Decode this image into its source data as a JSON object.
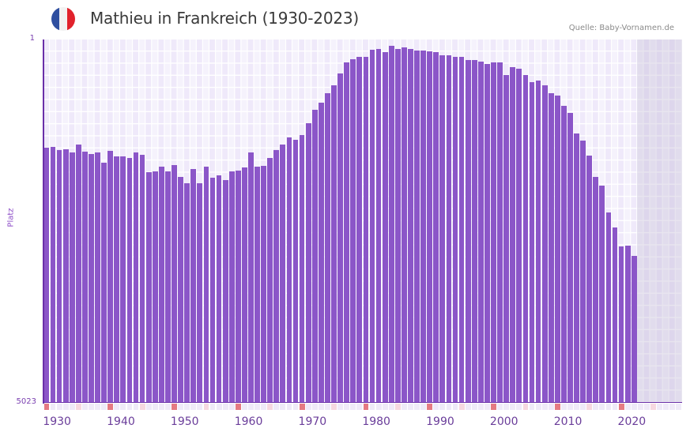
{
  "header": {
    "title": "Mathieu in Frankreich (1930-2023)",
    "source": "Quelle: Baby-Vornamen.de",
    "flag": {
      "icon": "france-flag-icon",
      "colors": [
        "#2f4fa0",
        "#f2f2f2",
        "#e1222c"
      ]
    }
  },
  "colors": {
    "bar": "#8b56c8",
    "axis": "#6a2fa8",
    "plot_bg_a": "#efe9fa",
    "plot_bg_b": "#f5f2fc",
    "future_bg": "#e3dfec",
    "decade_marker": "#e57a82",
    "half_decade_marker": "#f6d8e0",
    "other_marker": "#efeaf8"
  },
  "chart_data": {
    "type": "bar",
    "title": "Mathieu in Frankreich (1930-2023)",
    "xlabel": "",
    "ylabel": "Platz",
    "y_scale": "log",
    "y_inverted": true,
    "ylim": [
      1,
      5023
    ],
    "y_tick_labels": [
      "1",
      "5023"
    ],
    "x_tick_labels": [
      "1930",
      "1940",
      "1950",
      "1960",
      "1970",
      "1980",
      "1990",
      "2000",
      "2010",
      "2020"
    ],
    "x_range": [
      1930,
      2029
    ],
    "shaded_future_from": 2023,
    "grid": true,
    "legend": null,
    "categories": [
      1930,
      1931,
      1932,
      1933,
      1934,
      1935,
      1936,
      1937,
      1938,
      1939,
      1940,
      1941,
      1942,
      1943,
      1944,
      1945,
      1946,
      1947,
      1948,
      1949,
      1950,
      1951,
      1952,
      1953,
      1954,
      1955,
      1956,
      1957,
      1958,
      1959,
      1960,
      1961,
      1962,
      1963,
      1964,
      1965,
      1966,
      1967,
      1968,
      1969,
      1970,
      1971,
      1972,
      1973,
      1974,
      1975,
      1976,
      1977,
      1978,
      1979,
      1980,
      1981,
      1982,
      1983,
      1984,
      1985,
      1986,
      1987,
      1988,
      1989,
      1990,
      1991,
      1992,
      1993,
      1994,
      1995,
      1996,
      1997,
      1998,
      1999,
      2000,
      2001,
      2002,
      2003,
      2004,
      2005,
      2006,
      2007,
      2008,
      2009,
      2010,
      2011,
      2012,
      2013,
      2014,
      2015,
      2016,
      2017,
      2018,
      2019,
      2020,
      2021,
      2022
    ],
    "series": [
      {
        "name": "Platz",
        "values": [
          12.7,
          12.4,
          13.4,
          13.1,
          14.1,
          11.8,
          13.9,
          14.7,
          14.1,
          18.0,
          13.6,
          15.5,
          15.5,
          16.1,
          14.1,
          14.9,
          22.5,
          22.1,
          19.7,
          22.1,
          19.0,
          25.1,
          29.1,
          20.9,
          29.1,
          19.7,
          25.6,
          24.2,
          27.1,
          22.1,
          21.6,
          20.1,
          14.1,
          19.7,
          19.4,
          16.1,
          13.4,
          11.8,
          9.9,
          10.5,
          9.4,
          7.1,
          5.2,
          4.4,
          3.5,
          2.9,
          2.2,
          1.7,
          1.6,
          1.5,
          1.5,
          1.27,
          1.25,
          1.34,
          1.16,
          1.25,
          1.2,
          1.25,
          1.3,
          1.3,
          1.32,
          1.34,
          1.45,
          1.45,
          1.5,
          1.5,
          1.62,
          1.62,
          1.68,
          1.78,
          1.71,
          1.71,
          2.3,
          1.9,
          2.0,
          2.3,
          2.7,
          2.6,
          2.9,
          3.5,
          3.7,
          4.7,
          5.6,
          9.1,
          10.7,
          15.2,
          25.1,
          30.8,
          57.8,
          82.2,
          128,
          126,
          160
        ]
      }
    ]
  }
}
